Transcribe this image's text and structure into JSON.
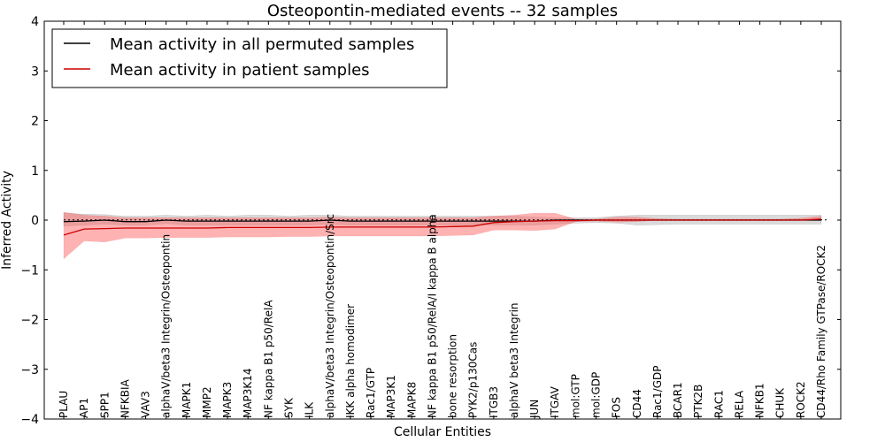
{
  "chart_data": {
    "type": "line",
    "title": "Osteopontin-mediated events -- 32 samples",
    "xlabel": "Cellular Entities",
    "ylabel": "Inferred Activity",
    "ylim": [
      -4,
      4
    ],
    "yticks": [
      -4,
      -3,
      -2,
      -1,
      0,
      1,
      2,
      3,
      4
    ],
    "ytick_labels": [
      "−4",
      "−3",
      "−2",
      "−1",
      "0",
      "1",
      "2",
      "3",
      "4"
    ],
    "legend_position": "top-left",
    "baseline": 0,
    "categories": [
      "PLAU",
      "AP1",
      "SPP1",
      "NFKBIA",
      "VAV3",
      "alphaV/beta3 Integrin/Osteopontin",
      "MAPK1",
      "MMP2",
      "MAPK3",
      "MAP3K14",
      "NF kappa B1 p50/RelA",
      "SYK",
      "ILK",
      "alphaV/beta3 Integrin/Osteopontin/Src",
      "IKK alpha homodimer",
      "Rac1/GTP",
      "MAP3K1",
      "MAPK8",
      "NF kappa B1 p50/RelA/I kappa B alpha",
      "bone resorption",
      "PYK2/p130Cas",
      "ITGB3",
      "alphaV beta3 Integrin",
      "JUN",
      "ITGAV",
      "mol:GTP",
      "mol:GDP",
      "FOS",
      "CD44",
      "Rac1/GDP",
      "BCAR1",
      "PTK2B",
      "RAC1",
      "RELA",
      "NFKB1",
      "CHUK",
      "ROCK2",
      "CD44/Rho Family GTPase/ROCK2"
    ],
    "series": [
      {
        "name": "Mean activity in all permuted samples",
        "color": "#000000",
        "values": [
          -0.03,
          -0.02,
          0.0,
          -0.03,
          -0.03,
          0.0,
          -0.02,
          -0.02,
          -0.02,
          -0.02,
          -0.02,
          -0.02,
          -0.02,
          0.0,
          -0.02,
          -0.02,
          -0.02,
          -0.02,
          -0.02,
          -0.02,
          -0.02,
          -0.02,
          -0.02,
          -0.02,
          0.0,
          0.0,
          0.0,
          0.0,
          0.0,
          0.0,
          0.0,
          0.0,
          0.0,
          0.0,
          0.0,
          0.0,
          0.0,
          0.0
        ],
        "lower": [
          -0.12,
          -0.1,
          -0.08,
          -0.1,
          -0.1,
          -0.07,
          -0.1,
          -0.1,
          -0.1,
          -0.1,
          -0.1,
          -0.1,
          -0.1,
          -0.08,
          -0.1,
          -0.1,
          -0.1,
          -0.1,
          -0.1,
          -0.1,
          -0.1,
          -0.1,
          -0.1,
          -0.1,
          -0.08,
          -0.06,
          -0.05,
          -0.06,
          -0.1,
          -0.09,
          -0.08,
          -0.08,
          -0.08,
          -0.08,
          -0.08,
          -0.08,
          -0.08,
          -0.08
        ],
        "upper": [
          0.14,
          0.12,
          0.11,
          0.08,
          0.08,
          0.1,
          0.08,
          0.1,
          0.08,
          0.1,
          0.1,
          0.08,
          0.1,
          0.1,
          0.08,
          0.08,
          0.08,
          0.08,
          0.08,
          0.08,
          0.08,
          0.08,
          0.08,
          0.06,
          0.05,
          0.05,
          0.05,
          0.08,
          0.1,
          0.1,
          0.1,
          0.1,
          0.1,
          0.1,
          0.1,
          0.1,
          0.1,
          0.1
        ]
      },
      {
        "name": "Mean activity in patient samples",
        "color": "#cc0000",
        "values": [
          -0.3,
          -0.18,
          -0.17,
          -0.16,
          -0.16,
          -0.16,
          -0.16,
          -0.16,
          -0.15,
          -0.15,
          -0.15,
          -0.15,
          -0.15,
          -0.14,
          -0.14,
          -0.14,
          -0.14,
          -0.14,
          -0.14,
          -0.13,
          -0.12,
          -0.05,
          -0.03,
          -0.02,
          -0.01,
          -0.01,
          0.0,
          0.0,
          0.0,
          0.0,
          0.0,
          0.0,
          0.0,
          0.0,
          0.0,
          0.0,
          0.0,
          0.02
        ],
        "lower": [
          -0.78,
          -0.42,
          -0.44,
          -0.36,
          -0.36,
          -0.35,
          -0.35,
          -0.35,
          -0.34,
          -0.34,
          -0.34,
          -0.33,
          -0.33,
          -0.32,
          -0.32,
          -0.32,
          -0.32,
          -0.32,
          -0.32,
          -0.31,
          -0.3,
          -0.2,
          -0.2,
          -0.21,
          -0.18,
          -0.03,
          -0.02,
          -0.04,
          -0.03,
          0.0,
          0.0,
          0.0,
          0.0,
          0.0,
          0.0,
          0.0,
          0.0,
          0.0
        ],
        "upper": [
          0.16,
          0.1,
          0.08,
          0.05,
          0.05,
          0.05,
          0.05,
          0.05,
          0.05,
          0.05,
          0.05,
          0.05,
          0.05,
          0.06,
          0.05,
          0.05,
          0.05,
          0.05,
          0.05,
          0.05,
          0.05,
          0.08,
          0.1,
          0.14,
          0.14,
          0.02,
          0.02,
          0.06,
          0.06,
          0.03,
          0.02,
          0.02,
          0.02,
          0.02,
          0.02,
          0.02,
          0.04,
          0.08
        ]
      }
    ]
  }
}
